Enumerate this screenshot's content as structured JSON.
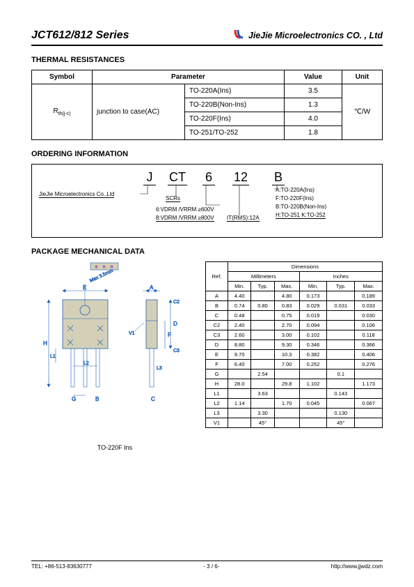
{
  "header": {
    "title": "JCT612/812 Series",
    "company": "JieJie Microelectronics CO. , Ltd",
    "logo_red": "#e6262b",
    "logo_blue": "#1a5fb4"
  },
  "thermal": {
    "section_title": "THERMAL RESISTANCES",
    "headers": [
      "Symbol",
      "Parameter",
      "Value",
      "Unit"
    ],
    "symbol": "Rth(j-c)",
    "param": "junction to case(AC)",
    "unit": "℃/W",
    "rows": [
      {
        "pkg": "TO-220A(Ins)",
        "val": "3.5"
      },
      {
        "pkg": "TO-220B(Non-Ins)",
        "val": "1.3"
      },
      {
        "pkg": "TO-220F(Ins)",
        "val": "4.0"
      },
      {
        "pkg": "TO-251/TO-252",
        "val": "1.8"
      }
    ]
  },
  "ordering": {
    "section_title": "ORDERING INFORMATION",
    "code_parts": [
      "J",
      "CT",
      "6",
      "12",
      "B"
    ],
    "company_line": "JieJie Microelectronics Co.,Ltd",
    "scrs": "SCRs",
    "voltage_lines": [
      "6:VDRM /VRRM ≥600V",
      "8:VDRM /VRRM ≥800V"
    ],
    "current": "IT(RMS):12A",
    "packages": [
      "A:TO-220A(Ins)",
      "F:TO-220F(Ins)",
      "B:TO-220B(Non-Ins)",
      "H:TO-251 K:TO-252"
    ]
  },
  "mech": {
    "section_title": "PACKAGE MECHANICAL DATA",
    "caption": "TO-220F Ins",
    "dim_header": "Dimensions",
    "units": [
      "Millimeters",
      "Inches"
    ],
    "subheaders": [
      "Min.",
      "Typ.",
      "Max.",
      "Min.",
      "Typ.",
      "Max."
    ],
    "ref_label": "Ref.",
    "rows": [
      [
        "A",
        "4.40",
        "",
        "4.80",
        "0.173",
        "",
        "0.189"
      ],
      [
        "B",
        "0.74",
        "0.80",
        "0.83",
        "0.029",
        "0.031",
        "0.033"
      ],
      [
        "C",
        "0.48",
        "",
        "0.75",
        "0.019",
        "",
        "0.030"
      ],
      [
        "C2",
        "2.40",
        "",
        "2.70",
        "0.094",
        "",
        "0.106"
      ],
      [
        "C3",
        "2.60",
        "",
        "3.00",
        "0.102",
        "",
        "0.118"
      ],
      [
        "D",
        "8.80",
        "",
        "9.30",
        "0.346",
        "",
        "0.366"
      ],
      [
        "E",
        "9.70",
        "",
        "10.3",
        "0.382",
        "",
        "0.406"
      ],
      [
        "F",
        "6.40",
        "",
        "7.00",
        "0.252",
        "",
        "0.276"
      ],
      [
        "G",
        "",
        "2.54",
        "",
        "",
        "0.1",
        ""
      ],
      [
        "H",
        "28.0",
        "",
        "29.8",
        "1.102",
        "",
        "1.173"
      ],
      [
        "L1",
        "",
        "3.63",
        "",
        "",
        "0.143",
        ""
      ],
      [
        "L2",
        "1.14",
        "",
        "1.70",
        "0.045",
        "",
        "0.067"
      ],
      [
        "L3",
        "",
        "3.30",
        "",
        "",
        "0.130",
        ""
      ],
      [
        "V1",
        "",
        "45°",
        "",
        "",
        "45°",
        ""
      ]
    ]
  },
  "footer": {
    "tel": "TEL: +86-513-83630777",
    "page": "- 3 / 6-",
    "url": "http://www.jjwdz.com"
  },
  "diagram": {
    "stroke": "#1a5fb4",
    "fill_body": "#d4d0b8",
    "arrow_color": "#1a5fb4",
    "max_label": "Max 3.5mm"
  }
}
